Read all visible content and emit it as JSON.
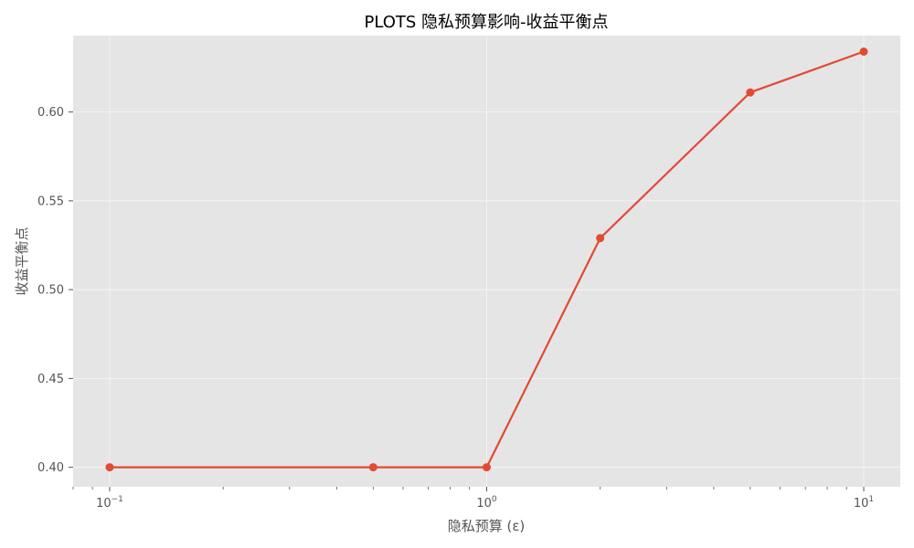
{
  "chart_data": {
    "type": "line",
    "title": "PLOTS 隐私预算影响-收益平衡点",
    "xlabel": "隐私预算 (ε)",
    "ylabel": "收益平衡点",
    "x_scale": "log",
    "xlim": [
      0.08,
      12.5
    ],
    "ylim": [
      0.389,
      0.643
    ],
    "x_ticks": [
      {
        "value": 0.1,
        "base": "10",
        "exp": "−1"
      },
      {
        "value": 1,
        "base": "10",
        "exp": "0"
      },
      {
        "value": 10,
        "base": "10",
        "exp": "1"
      }
    ],
    "y_ticks": [
      0.4,
      0.45,
      0.5,
      0.55,
      0.6
    ],
    "y_tick_labels": [
      "0.40",
      "0.45",
      "0.50",
      "0.55",
      "0.60"
    ],
    "grid": true,
    "legend": "none",
    "series": [
      {
        "color": "#E24A33",
        "x": [
          0.1,
          0.5,
          1,
          2,
          5,
          10
        ],
        "y": [
          0.4,
          0.4,
          0.4,
          0.529,
          0.611,
          0.634
        ]
      }
    ]
  },
  "colors": {
    "plot_background": "#E5E5E5",
    "grid": "#F3F3F3",
    "line": "#E24A33"
  }
}
